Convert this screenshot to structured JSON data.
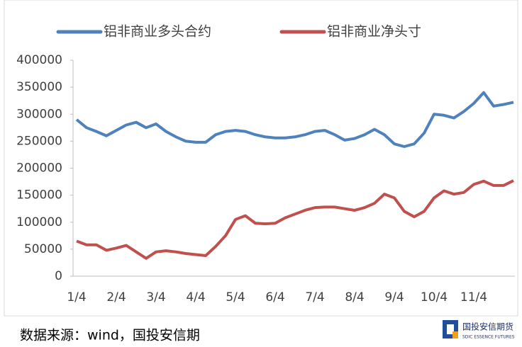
{
  "chart_data": {
    "type": "line",
    "categories": [
      "1/4",
      null,
      null,
      null,
      "2/4",
      null,
      null,
      null,
      "3/4",
      null,
      null,
      null,
      "4/4",
      null,
      null,
      null,
      "5/4",
      null,
      null,
      null,
      "6/4",
      null,
      null,
      null,
      "7/4",
      null,
      null,
      null,
      "8/4",
      null,
      null,
      null,
      "9/4",
      null,
      null,
      null,
      "10/4",
      null,
      null,
      null,
      "11/4",
      null,
      null,
      null,
      null
    ],
    "series": [
      {
        "name": "铝非商业多头合约",
        "color": "#4f81bd",
        "values": [
          290000,
          275000,
          268000,
          260000,
          270000,
          280000,
          285000,
          275000,
          282000,
          268000,
          258000,
          250000,
          248000,
          248000,
          262000,
          268000,
          270000,
          268000,
          262000,
          258000,
          256000,
          256000,
          258000,
          262000,
          268000,
          270000,
          262000,
          252000,
          255000,
          262000,
          272000,
          262000,
          245000,
          240000,
          245000,
          265000,
          300000,
          298000,
          293000,
          305000,
          320000,
          340000,
          315000,
          318000,
          322000
        ]
      },
      {
        "name": "铝非商业净头寸",
        "color": "#c0504d",
        "values": [
          65000,
          58000,
          58000,
          48000,
          52000,
          57000,
          45000,
          33000,
          45000,
          47000,
          45000,
          42000,
          40000,
          38000,
          55000,
          75000,
          105000,
          112000,
          98000,
          97000,
          98000,
          108000,
          115000,
          122000,
          127000,
          128000,
          128000,
          125000,
          122000,
          127000,
          135000,
          152000,
          145000,
          120000,
          110000,
          120000,
          145000,
          158000,
          152000,
          155000,
          170000,
          176000,
          168000,
          168000,
          177000
        ]
      }
    ],
    "ylim": [
      0,
      400000
    ],
    "yticks": [
      0,
      50000,
      100000,
      150000,
      200000,
      250000,
      300000,
      350000,
      400000
    ],
    "grid": false
  },
  "source": "数据来源：wind，国投安信期",
  "logo": {
    "name": "国投安信期货",
    "subtitle": "SDIC ESSENCE FUTURES"
  }
}
